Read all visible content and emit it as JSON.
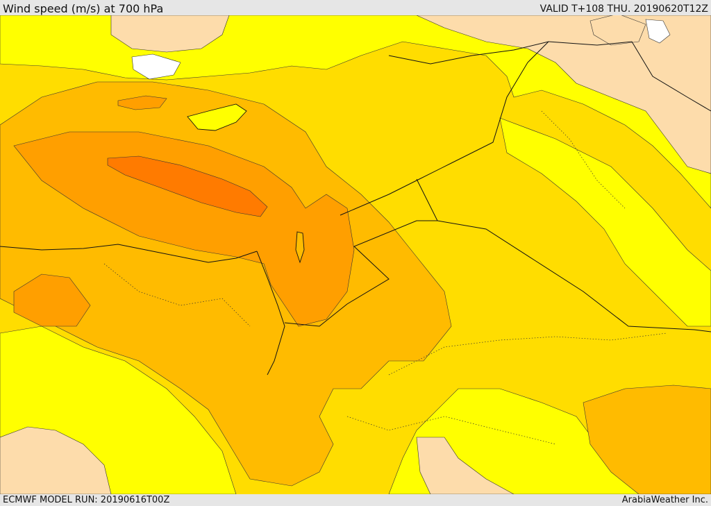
{
  "header": {
    "title": "Wind speed (m/s) at 700 hPa",
    "valid": "VALID T+108 THU. 20190620T12Z"
  },
  "footer": {
    "model_run": "ECMWF MODEL RUN: 20190616T00Z",
    "credit": "ArabiaWeather Inc."
  },
  "map": {
    "field": "Wind speed at 700 hPa",
    "colors": {
      "none": "#ffffff",
      "very_low": "#fddcab",
      "low": "#ffff00",
      "moderate": "#ffdd00",
      "elevated": "#ffbb00",
      "high": "#ff9f00",
      "very_high": "#ff7b00"
    }
  }
}
